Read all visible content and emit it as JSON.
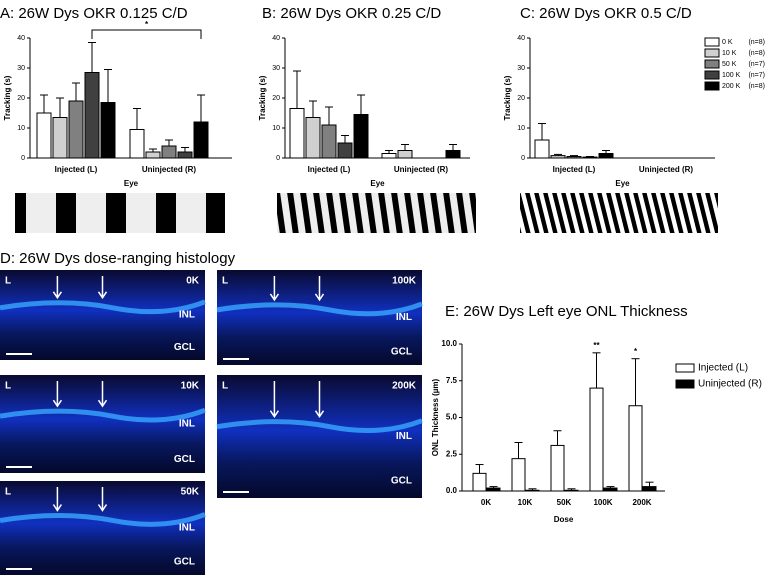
{
  "chart_data": [
    {
      "type": "bar",
      "title": "A: 26W Dys OKR 0.125 C/D",
      "x_label": "Eye",
      "y_label": "Tracking (s)",
      "categories": [
        "Injected (L)",
        "Uninjected (R)"
      ],
      "series": [
        {
          "name": "0 K",
          "color": "#ffffff",
          "values": [
            15,
            9.5
          ],
          "errors": [
            6,
            7
          ]
        },
        {
          "name": "10 K",
          "color": "#d0d0d0",
          "values": [
            13.5,
            2
          ],
          "errors": [
            6.5,
            1
          ]
        },
        {
          "name": "50 K",
          "color": "#808080",
          "values": [
            19,
            4
          ],
          "errors": [
            6,
            2
          ]
        },
        {
          "name": "100 K",
          "color": "#404040",
          "values": [
            28.5,
            2
          ],
          "errors": [
            10,
            1.5
          ]
        },
        {
          "name": "200 K",
          "color": "#000000",
          "values": [
            18.5,
            12
          ],
          "errors": [
            11,
            9
          ]
        }
      ],
      "ylim": [
        0,
        40
      ],
      "yticks": [
        0,
        10,
        20,
        30,
        40
      ],
      "legend": false,
      "annotations": [
        "*"
      ]
    },
    {
      "type": "bar",
      "title": "B: 26W Dys OKR 0.25 C/D",
      "x_label": "Eye",
      "y_label": "Tracking (s)",
      "categories": [
        "Injected (L)",
        "Uninjected (R)"
      ],
      "series": [
        {
          "name": "0 K",
          "color": "#ffffff",
          "values": [
            16.5,
            1.5
          ],
          "errors": [
            12.5,
            1
          ]
        },
        {
          "name": "10 K",
          "color": "#d0d0d0",
          "values": [
            13.5,
            2.5
          ],
          "errors": [
            5.5,
            2
          ]
        },
        {
          "name": "50 K",
          "color": "#808080",
          "values": [
            11,
            0
          ],
          "errors": [
            6,
            0
          ]
        },
        {
          "name": "100 K",
          "color": "#404040",
          "values": [
            5,
            0
          ],
          "errors": [
            2.5,
            0
          ]
        },
        {
          "name": "200 K",
          "color": "#000000",
          "values": [
            14.5,
            2.5
          ],
          "errors": [
            6.5,
            2
          ]
        }
      ],
      "ylim": [
        0,
        40
      ],
      "yticks": [
        0,
        10,
        20,
        30,
        40
      ],
      "legend": false,
      "annotations": []
    },
    {
      "type": "bar",
      "title": "C: 26W Dys OKR 0.5 C/D",
      "x_label": "Eye",
      "y_label": "Tracking (s)",
      "categories": [
        "Injected (L)",
        "Uninjected (R)"
      ],
      "series": [
        {
          "name": "0 K",
          "n_label": "(n=8)",
          "color": "#ffffff",
          "values": [
            6,
            0
          ],
          "errors": [
            5.5,
            0
          ]
        },
        {
          "name": "10 K",
          "n_label": "(n=8)",
          "color": "#d0d0d0",
          "values": [
            0.8,
            0
          ],
          "errors": [
            0.4,
            0
          ]
        },
        {
          "name": "50 K",
          "n_label": "(n=7)",
          "color": "#808080",
          "values": [
            0.5,
            0
          ],
          "errors": [
            0.3,
            0
          ]
        },
        {
          "name": "100 K",
          "n_label": "(n=7)",
          "color": "#404040",
          "values": [
            0.3,
            0
          ],
          "errors": [
            0.2,
            0
          ]
        },
        {
          "name": "200 K",
          "n_label": "(n=8)",
          "color": "#000000",
          "values": [
            1.5,
            0
          ],
          "errors": [
            1,
            0
          ]
        }
      ],
      "ylim": [
        0,
        40
      ],
      "yticks": [
        0,
        10,
        20,
        30,
        40
      ],
      "legend": true,
      "annotations": []
    },
    {
      "type": "bar",
      "title": "E: 26W Dys Left eye ONL Thickness",
      "x_label": "Dose",
      "y_label": "ONL Thickness (µm)",
      "categories": [
        "0K",
        "10K",
        "50K",
        "100K",
        "200K"
      ],
      "series": [
        {
          "name": "Injected (L)",
          "color": "#ffffff",
          "values": [
            1.2,
            2.2,
            3.1,
            7.0,
            5.8
          ],
          "errors": [
            0.6,
            1.1,
            1.0,
            2.4,
            3.2
          ]
        },
        {
          "name": "Uninjected (R)",
          "color": "#000000",
          "values": [
            0.2,
            0.05,
            0.05,
            0.2,
            0.3
          ],
          "errors": [
            0.1,
            0.1,
            0.1,
            0.1,
            0.3
          ]
        }
      ],
      "ylim": [
        0,
        10
      ],
      "yticks": [
        {
          "value": 0,
          "label": "0.0"
        },
        {
          "value": 2.5,
          "label": "2.5"
        },
        {
          "value": 5,
          "label": "5.0"
        },
        {
          "value": 7.5,
          "label": "7.5"
        },
        {
          "value": 10,
          "label": "10.0"
        }
      ],
      "legend": true,
      "annotations": [
        "**",
        "*"
      ]
    }
  ],
  "histology": {
    "title": "D: 26W Dys dose-ranging histology",
    "panels": [
      {
        "side": "L",
        "dose": "0K",
        "layers": [
          "INL",
          "GCL"
        ]
      },
      {
        "side": "L",
        "dose": "10K",
        "layers": [
          "INL",
          "GCL"
        ]
      },
      {
        "side": "L",
        "dose": "50K",
        "layers": [
          "INL",
          "GCL"
        ]
      },
      {
        "side": "L",
        "dose": "100K",
        "layers": [
          "INL",
          "GCL"
        ]
      },
      {
        "side": "L",
        "dose": "200K",
        "layers": [
          "INL",
          "GCL"
        ]
      }
    ]
  }
}
